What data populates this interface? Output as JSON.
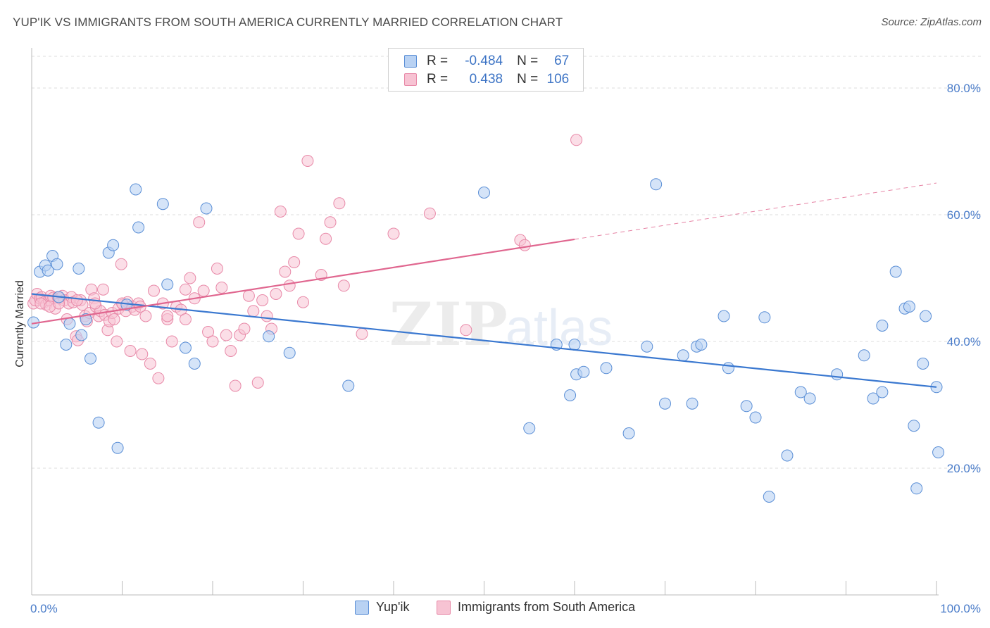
{
  "title": "YUP'IK VS IMMIGRANTS FROM SOUTH AMERICA CURRENTLY MARRIED CORRELATION CHART",
  "source": "Source: ZipAtlas.com",
  "watermark": {
    "bold": "ZIP",
    "light": "atlas"
  },
  "legend": {
    "r_label": "R =",
    "n_label": "N =",
    "series": [
      {
        "r": "-0.484",
        "n": "67"
      },
      {
        "r": "0.438",
        "n": "106"
      }
    ]
  },
  "bottom_legend": [
    "Yup'ik",
    "Immigrants from South America"
  ],
  "colors": {
    "blue_fill": "#b9d2f3",
    "blue_stroke": "#5b8fd6",
    "blue_line": "#3a78d0",
    "pink_fill": "#f7c3d3",
    "pink_stroke": "#e889a8",
    "pink_line": "#e0668f",
    "tick_text": "#4a7cc9",
    "grid": "#dddddd"
  },
  "chart_data": {
    "type": "scatter",
    "title": "YUP'IK VS IMMIGRANTS FROM SOUTH AMERICA CURRENTLY MARRIED CORRELATION CHART",
    "xlabel": "",
    "ylabel": "Currently Married",
    "xlim": [
      0,
      100
    ],
    "ylim": [
      0,
      85
    ],
    "x_tick_labels": [
      "0.0%",
      "100.0%"
    ],
    "y_ticks": [
      20,
      40,
      60,
      80
    ],
    "y_tick_labels": [
      "20.0%",
      "40.0%",
      "60.0%",
      "80.0%"
    ],
    "grid": true,
    "legend_position": "top-center",
    "series": [
      {
        "name": "Yup'ik",
        "r": -0.484,
        "n": 67,
        "trend": {
          "x": [
            0,
            100
          ],
          "y": [
            47.5,
            32.8
          ],
          "dashed_from": null
        },
        "points": [
          [
            0.2,
            43.0
          ],
          [
            0.9,
            51.0
          ],
          [
            1.5,
            52.0
          ],
          [
            1.8,
            51.2
          ],
          [
            2.3,
            53.5
          ],
          [
            2.8,
            52.2
          ],
          [
            3.0,
            47.0
          ],
          [
            3.8,
            39.5
          ],
          [
            4.2,
            42.8
          ],
          [
            5.2,
            51.5
          ],
          [
            5.5,
            41.0
          ],
          [
            6.0,
            43.5
          ],
          [
            6.5,
            37.3
          ],
          [
            7.4,
            27.2
          ],
          [
            8.5,
            54.0
          ],
          [
            9.0,
            55.2
          ],
          [
            9.5,
            23.2
          ],
          [
            10.5,
            45.8
          ],
          [
            11.5,
            64.0
          ],
          [
            11.8,
            58.0
          ],
          [
            14.5,
            61.7
          ],
          [
            15.0,
            49.0
          ],
          [
            17.0,
            39.0
          ],
          [
            18.0,
            36.5
          ],
          [
            19.3,
            61.0
          ],
          [
            26.2,
            40.8
          ],
          [
            28.5,
            38.2
          ],
          [
            35.0,
            33.0
          ],
          [
            50.0,
            63.5
          ],
          [
            55.0,
            26.3
          ],
          [
            58.0,
            39.5
          ],
          [
            59.5,
            31.5
          ],
          [
            60.0,
            39.5
          ],
          [
            60.2,
            34.8
          ],
          [
            61.0,
            35.2
          ],
          [
            63.5,
            35.8
          ],
          [
            66.0,
            25.5
          ],
          [
            68.0,
            39.2
          ],
          [
            69.0,
            64.8
          ],
          [
            70.0,
            30.2
          ],
          [
            72.0,
            37.8
          ],
          [
            73.0,
            30.2
          ],
          [
            73.5,
            39.2
          ],
          [
            74.0,
            39.5
          ],
          [
            76.5,
            44.0
          ],
          [
            77.0,
            35.8
          ],
          [
            79.0,
            29.8
          ],
          [
            80.0,
            28.0
          ],
          [
            81.0,
            43.8
          ],
          [
            81.5,
            15.5
          ],
          [
            83.5,
            22.0
          ],
          [
            85.0,
            32.0
          ],
          [
            86.0,
            31.0
          ],
          [
            89.0,
            34.8
          ],
          [
            92.0,
            37.8
          ],
          [
            93.0,
            31.0
          ],
          [
            94.0,
            42.5
          ],
          [
            94.0,
            32.0
          ],
          [
            95.5,
            51.0
          ],
          [
            96.5,
            45.2
          ],
          [
            97.0,
            45.5
          ],
          [
            97.5,
            26.7
          ],
          [
            97.8,
            16.8
          ],
          [
            98.5,
            36.5
          ],
          [
            98.8,
            44.0
          ],
          [
            100.0,
            32.8
          ],
          [
            100.2,
            22.5
          ]
        ]
      },
      {
        "name": "Immigrants from South America",
        "r": 0.438,
        "n": 106,
        "trend": {
          "x": [
            0,
            100
          ],
          "y": [
            42.8,
            65.0
          ],
          "dashed_from": 60
        },
        "points": [
          [
            0.2,
            46.0
          ],
          [
            0.4,
            46.5
          ],
          [
            0.6,
            47.5
          ],
          [
            0.9,
            46.8
          ],
          [
            1.1,
            47.0
          ],
          [
            1.4,
            46.2
          ],
          [
            1.6,
            45.8
          ],
          [
            1.9,
            46.5
          ],
          [
            2.1,
            47.2
          ],
          [
            2.4,
            46.9
          ],
          [
            2.6,
            45.2
          ],
          [
            2.9,
            47.0
          ],
          [
            3.1,
            46.8
          ],
          [
            3.4,
            47.2
          ],
          [
            3.6,
            46.5
          ],
          [
            3.9,
            43.5
          ],
          [
            4.1,
            46.0
          ],
          [
            4.4,
            47.0
          ],
          [
            4.6,
            46.2
          ],
          [
            4.9,
            40.8
          ],
          [
            5.1,
            40.2
          ],
          [
            5.4,
            46.5
          ],
          [
            5.6,
            45.8
          ],
          [
            5.9,
            44.0
          ],
          [
            6.1,
            43.2
          ],
          [
            6.4,
            44.5
          ],
          [
            6.6,
            48.2
          ],
          [
            6.9,
            46.8
          ],
          [
            7.1,
            45.5
          ],
          [
            7.4,
            44.0
          ],
          [
            7.6,
            44.8
          ],
          [
            7.9,
            48.2
          ],
          [
            8.1,
            44.2
          ],
          [
            8.4,
            41.8
          ],
          [
            8.6,
            43.2
          ],
          [
            8.9,
            44.5
          ],
          [
            9.1,
            43.5
          ],
          [
            9.4,
            40.0
          ],
          [
            9.6,
            45.2
          ],
          [
            9.9,
            52.2
          ],
          [
            10.1,
            45.8
          ],
          [
            10.4,
            44.8
          ],
          [
            10.6,
            46.2
          ],
          [
            10.9,
            38.5
          ],
          [
            11.1,
            45.5
          ],
          [
            11.4,
            45.0
          ],
          [
            11.8,
            46.0
          ],
          [
            12.2,
            38.0
          ],
          [
            12.6,
            44.0
          ],
          [
            13.1,
            36.5
          ],
          [
            13.5,
            48.0
          ],
          [
            14.0,
            34.2
          ],
          [
            14.5,
            46.0
          ],
          [
            15.0,
            43.5
          ],
          [
            15.5,
            40.0
          ],
          [
            16.0,
            45.5
          ],
          [
            16.5,
            45.0
          ],
          [
            17.0,
            48.2
          ],
          [
            17.5,
            50.0
          ],
          [
            18.0,
            46.8
          ],
          [
            18.5,
            58.8
          ],
          [
            19.0,
            48.0
          ],
          [
            19.5,
            41.5
          ],
          [
            20.0,
            40.0
          ],
          [
            20.5,
            51.5
          ],
          [
            21.0,
            48.5
          ],
          [
            21.5,
            41.0
          ],
          [
            22.0,
            38.5
          ],
          [
            22.5,
            33.0
          ],
          [
            23.0,
            41.0
          ],
          [
            23.5,
            42.0
          ],
          [
            24.0,
            47.2
          ],
          [
            24.5,
            44.8
          ],
          [
            25.0,
            33.5
          ],
          [
            25.5,
            46.5
          ],
          [
            26.0,
            44.0
          ],
          [
            26.5,
            42.0
          ],
          [
            27.0,
            47.5
          ],
          [
            27.5,
            60.5
          ],
          [
            28.0,
            51.0
          ],
          [
            28.5,
            48.8
          ],
          [
            29.0,
            52.5
          ],
          [
            29.5,
            57.0
          ],
          [
            30.0,
            46.2
          ],
          [
            30.5,
            68.5
          ],
          [
            32.0,
            50.5
          ],
          [
            32.5,
            56.2
          ],
          [
            33.0,
            58.8
          ],
          [
            34.0,
            61.8
          ],
          [
            34.5,
            48.8
          ],
          [
            36.5,
            41.2
          ],
          [
            40.0,
            57.0
          ],
          [
            44.0,
            60.2
          ],
          [
            48.0,
            41.8
          ],
          [
            54.0,
            56.0
          ],
          [
            54.5,
            55.2
          ],
          [
            60.2,
            71.8
          ],
          [
            1.0,
            46.0
          ],
          [
            2.0,
            45.5
          ],
          [
            3.0,
            46.0
          ],
          [
            5.0,
            46.5
          ],
          [
            7.0,
            46.0
          ],
          [
            10.0,
            46.0
          ],
          [
            12.0,
            45.5
          ],
          [
            15.0,
            44.0
          ],
          [
            17.0,
            43.5
          ]
        ]
      }
    ]
  }
}
